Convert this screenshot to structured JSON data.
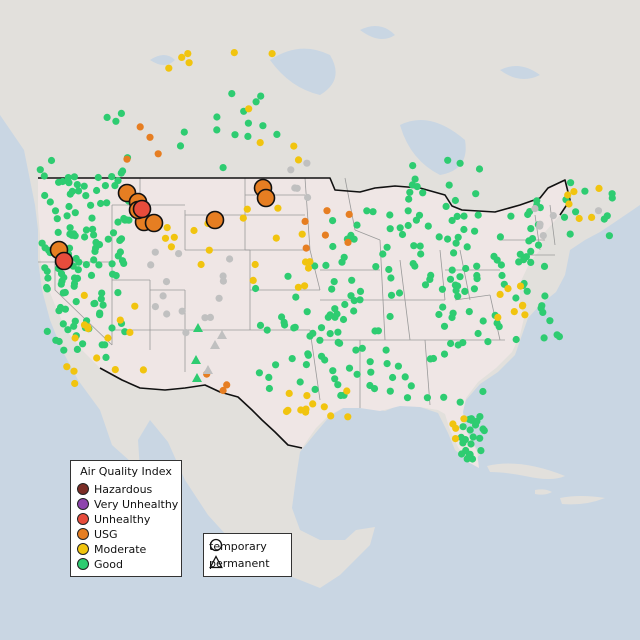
{
  "colors": {
    "water": "#c9d6e3",
    "land_us": "#efe6e5",
    "land_other": "#e2e0dc",
    "state_border": "#9a9a9a",
    "country_border": "#111111",
    "good": "#2ecc71",
    "moderate": "#f1c40f",
    "usg": "#e67e22",
    "unhealthy": "#e74c3c",
    "very_unhealthy": "#8e44ad",
    "hazardous": "#7b2d26",
    "nodata": "#c0c0c0"
  },
  "legend": {
    "title": "Air Quality Index",
    "items": [
      {
        "key": "hazardous",
        "label": "Hazardous"
      },
      {
        "key": "very_unhealthy",
        "label": "Very Unhealthy"
      },
      {
        "key": "unhealthy",
        "label": "Unhealthy"
      },
      {
        "key": "usg",
        "label": "USG"
      },
      {
        "key": "moderate",
        "label": "Moderate"
      },
      {
        "key": "good",
        "label": "Good"
      }
    ]
  },
  "monitor_legend": {
    "temporary": "temporary",
    "permanent": "permanent"
  },
  "major_sites": [
    {
      "level": "usg",
      "type": "temporary"
    },
    {
      "level": "usg",
      "type": "temporary"
    },
    {
      "level": "usg",
      "type": "temporary"
    },
    {
      "level": "usg",
      "type": "temporary"
    },
    {
      "level": "usg",
      "type": "temporary"
    },
    {
      "level": "usg",
      "type": "temporary"
    },
    {
      "level": "usg",
      "type": "temporary"
    },
    {
      "level": "usg",
      "type": "temporary"
    },
    {
      "level": "usg",
      "type": "temporary"
    },
    {
      "level": "unhealthy",
      "type": "temporary"
    },
    {
      "level": "unhealthy",
      "type": "temporary"
    }
  ]
}
